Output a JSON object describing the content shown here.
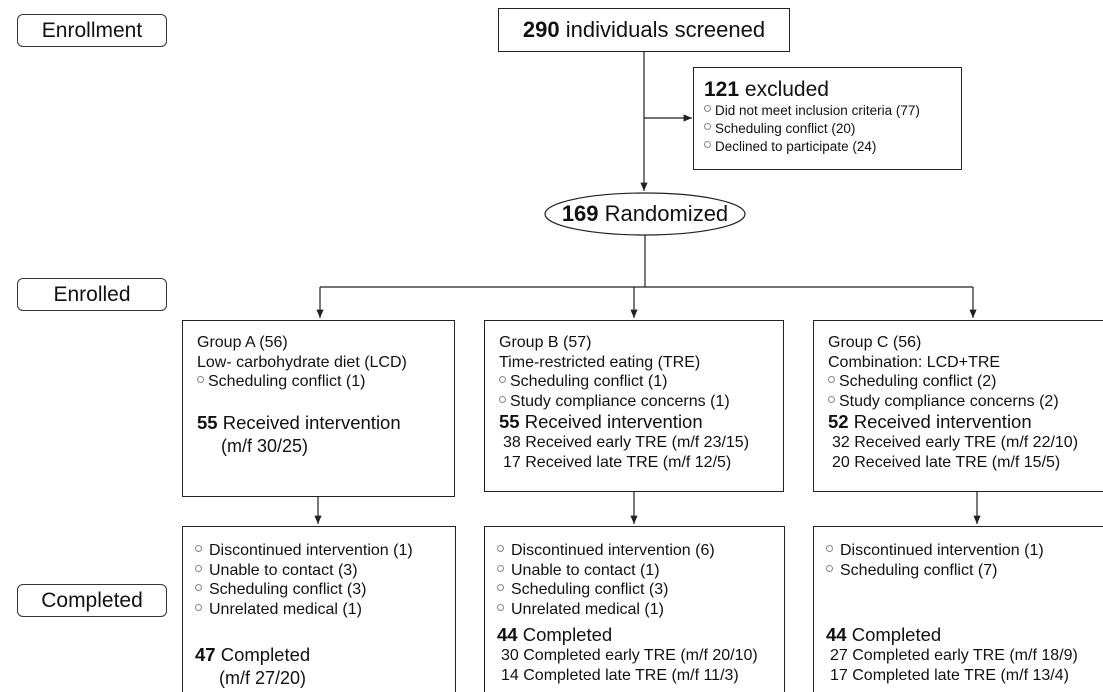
{
  "stages": [
    "Enrollment",
    "Enrolled",
    "Completed"
  ],
  "screened": {
    "count": 290,
    "label": "individuals screened"
  },
  "excluded": {
    "count": 121,
    "label": "excluded",
    "reasons": [
      "Did not meet inclusion criteria (77)",
      "Scheduling conflict (20)",
      "Declined to participate (24)"
    ]
  },
  "randomized": {
    "count": 169,
    "label": "Randomized"
  },
  "groups": [
    {
      "title": "Group A (56)",
      "subtitle": "Low- carbohydrate diet (LCD)",
      "reasons": [
        "Scheduling conflict (1)"
      ],
      "received": {
        "count": 55,
        "label": "Received intervention",
        "details": [
          "(m/f 30/25)"
        ]
      },
      "completion": {
        "reasons": [
          "Discontinued intervention (1)",
          "Unable to contact (3)",
          "Scheduling conflict (3)",
          "Unrelated medical (1)"
        ],
        "count": 47,
        "label": "Completed",
        "details": [
          "(m/f 27/20)"
        ]
      }
    },
    {
      "title": "Group B (57)",
      "subtitle": "Time-restricted eating (TRE)",
      "reasons": [
        "Scheduling conflict (1)",
        "Study compliance concerns (1)"
      ],
      "received": {
        "count": 55,
        "label": "Received intervention",
        "details": [
          "38 Received early TRE (m/f 23/15)",
          "17 Received late TRE (m/f 12/5)"
        ]
      },
      "completion": {
        "reasons": [
          "Discontinued intervention (6)",
          "Unable to contact (1)",
          "Scheduling conflict (3)",
          "Unrelated medical (1)"
        ],
        "count": 44,
        "label": "Completed",
        "details": [
          "30 Completed early TRE (m/f 20/10)",
          "14 Completed late TRE (m/f 11/3)"
        ]
      }
    },
    {
      "title": "Group C (56)",
      "subtitle": "Combination: LCD+TRE",
      "reasons": [
        "Scheduling conflict (2)",
        "Study compliance concerns (2)"
      ],
      "received": {
        "count": 52,
        "label": "Received intervention",
        "details": [
          "32 Received early TRE (m/f 22/10)",
          "20 Received late TRE (m/f 15/5)"
        ]
      },
      "completion": {
        "reasons": [
          "Discontinued intervention (1)",
          "Scheduling conflict (7)"
        ],
        "count": 44,
        "label": "Completed",
        "details": [
          "27 Completed early TRE (m/f 18/9)",
          "17 Completed late TRE (m/f 13/4)"
        ]
      }
    }
  ]
}
